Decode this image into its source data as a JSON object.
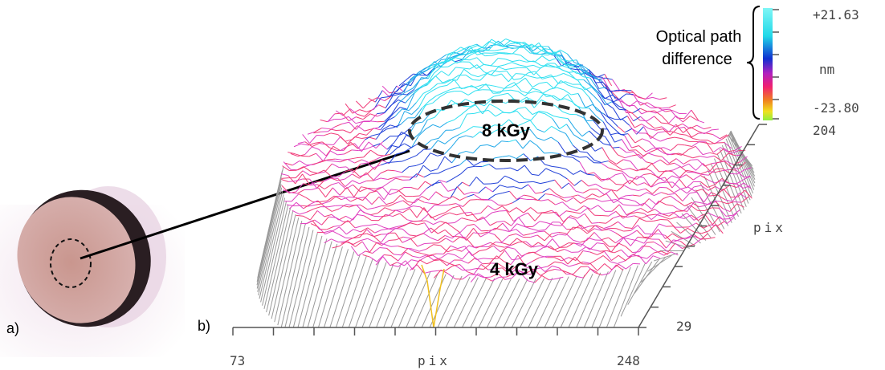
{
  "panels": {
    "a": "a)",
    "b": "b)"
  },
  "doses": {
    "top": "8 kGy",
    "bottom": "4 kGy"
  },
  "colorbar": {
    "title_lines": [
      "Optical path",
      "difference"
    ],
    "max": "+21.63",
    "unit": "nm",
    "min": "-23.80"
  },
  "axes": {
    "x_start": "73",
    "x_end": "248",
    "x_label": "pix",
    "y_start": "29",
    "y_end": "204",
    "y_label": "pix"
  }
}
